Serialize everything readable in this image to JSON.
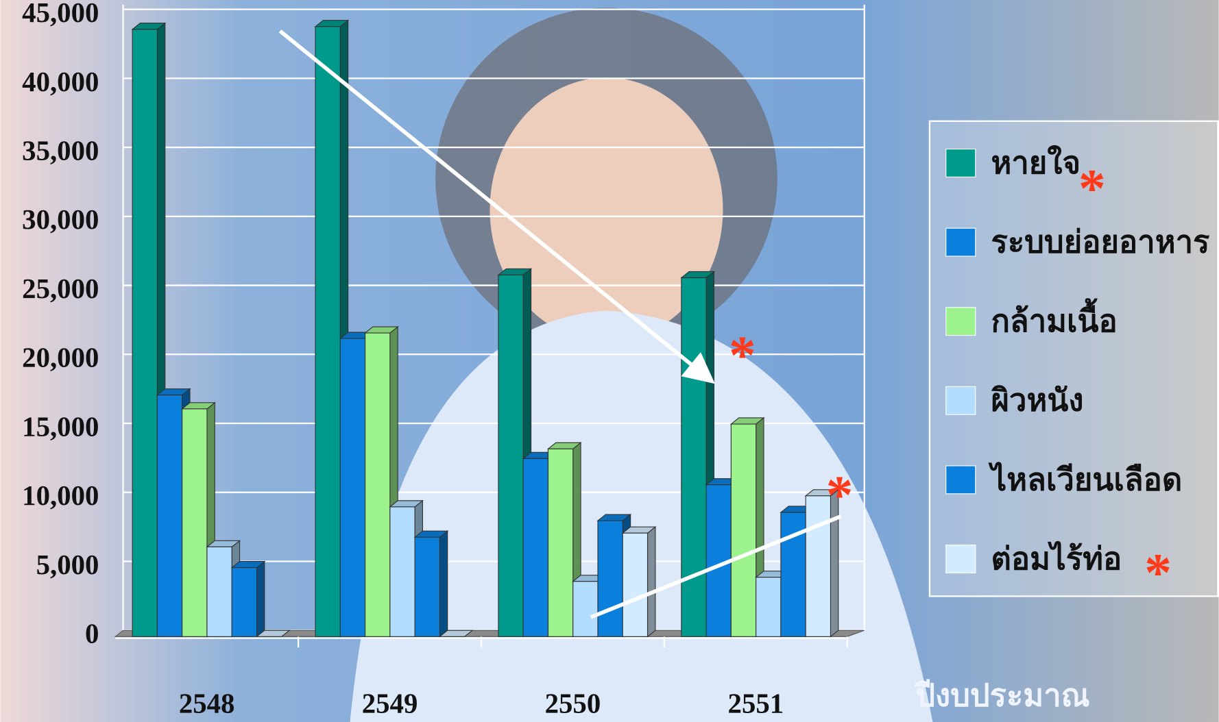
{
  "chart_data": {
    "type": "bar3d",
    "categories": [
      "2548",
      "2549",
      "2550",
      "2551"
    ],
    "x_label": "ปีงบประมาณ",
    "series": [
      {
        "name": "หายใจ",
        "color": "#009a8c",
        "values": [
          44000,
          44200,
          26200,
          26000
        ]
      },
      {
        "name": "ระบบย่อยอาหาร",
        "color": "#0a80dc",
        "values": [
          17500,
          21600,
          12900,
          11000
        ]
      },
      {
        "name": "กล้ามเนื้อ",
        "color": "#9cf28c",
        "values": [
          16500,
          22000,
          13600,
          15400
        ]
      },
      {
        "name": "ผิวหนัง",
        "color": "#b2ddff",
        "values": [
          6500,
          9400,
          4000,
          4300
        ]
      },
      {
        "name": "ไหลเวียนเลือด",
        "color": "#0a80dc",
        "values": [
          5000,
          7200,
          8400,
          9000
        ]
      },
      {
        "name": "ต่อมไร้ท่อ",
        "color": "#d2ebff",
        "values": [
          0,
          0,
          7500,
          10200
        ]
      }
    ],
    "ylim": [
      0,
      45000
    ],
    "yticks": [
      0,
      {
        "value": 5000,
        "label": "5,000"
      },
      {
        "value": 10000,
        "label": "10,000"
      },
      {
        "value": 15000,
        "label": "15,000"
      },
      {
        "value": 20000,
        "label": "20,000"
      },
      {
        "value": 25000,
        "label": "25,000"
      },
      {
        "value": 30000,
        "label": "30,000"
      },
      {
        "value": 35000,
        "label": "35,000"
      },
      {
        "value": 40000,
        "label": "40,000"
      },
      {
        "value": 45000,
        "label": "45,000"
      }
    ],
    "grid": true,
    "annotations": [
      "*",
      "*",
      "*",
      "*"
    ]
  }
}
